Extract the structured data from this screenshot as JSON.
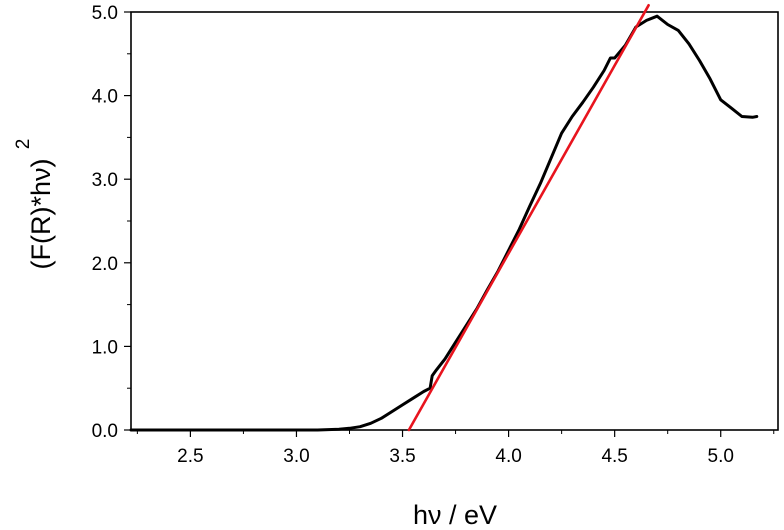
{
  "chart_data": {
    "type": "line",
    "title": "",
    "xlabel": "hν / eV",
    "ylabel": "(F(R)*hν)",
    "ylabel_superscript": "2",
    "xlim": [
      2.22,
      5.27
    ],
    "ylim": [
      0.0,
      5.0
    ],
    "x_ticks": [
      2.5,
      3.0,
      3.5,
      4.0,
      4.5,
      5.0
    ],
    "x_tick_labels": [
      "2.5",
      "3.0",
      "3.5",
      "4.0",
      "4.5",
      "5.0"
    ],
    "y_ticks": [
      0.0,
      1.0,
      2.0,
      3.0,
      4.0,
      5.0
    ],
    "y_tick_labels": [
      "0.0",
      "1.0",
      "2.0",
      "3.0",
      "4.0",
      "5.0"
    ],
    "grid": false,
    "legend": "none",
    "series": [
      {
        "color": "#000000",
        "x": [
          2.22,
          2.5,
          2.8,
          3.0,
          3.1,
          3.2,
          3.25,
          3.3,
          3.35,
          3.4,
          3.45,
          3.5,
          3.55,
          3.6,
          3.63,
          3.64,
          3.66,
          3.7,
          3.75,
          3.8,
          3.85,
          3.9,
          3.95,
          4.0,
          4.05,
          4.1,
          4.15,
          4.2,
          4.25,
          4.3,
          4.35,
          4.4,
          4.45,
          4.48,
          4.5,
          4.55,
          4.6,
          4.65,
          4.7,
          4.75,
          4.8,
          4.85,
          4.9,
          4.95,
          5.0,
          5.05,
          5.1,
          5.15,
          5.17
        ],
        "y": [
          0.0,
          0.0,
          0.0,
          0.0,
          0.0,
          0.01,
          0.02,
          0.04,
          0.08,
          0.14,
          0.22,
          0.3,
          0.38,
          0.46,
          0.5,
          0.65,
          0.72,
          0.85,
          1.05,
          1.25,
          1.45,
          1.68,
          1.9,
          2.15,
          2.4,
          2.68,
          2.95,
          3.25,
          3.55,
          3.75,
          3.92,
          4.1,
          4.3,
          4.45,
          4.45,
          4.6,
          4.82,
          4.9,
          4.95,
          4.85,
          4.78,
          4.62,
          4.42,
          4.2,
          3.95,
          3.85,
          3.75,
          3.74,
          3.75
        ]
      },
      {
        "color": "#e8141e",
        "x": [
          3.53,
          4.66
        ],
        "y": [
          0.0,
          5.08
        ]
      }
    ]
  }
}
